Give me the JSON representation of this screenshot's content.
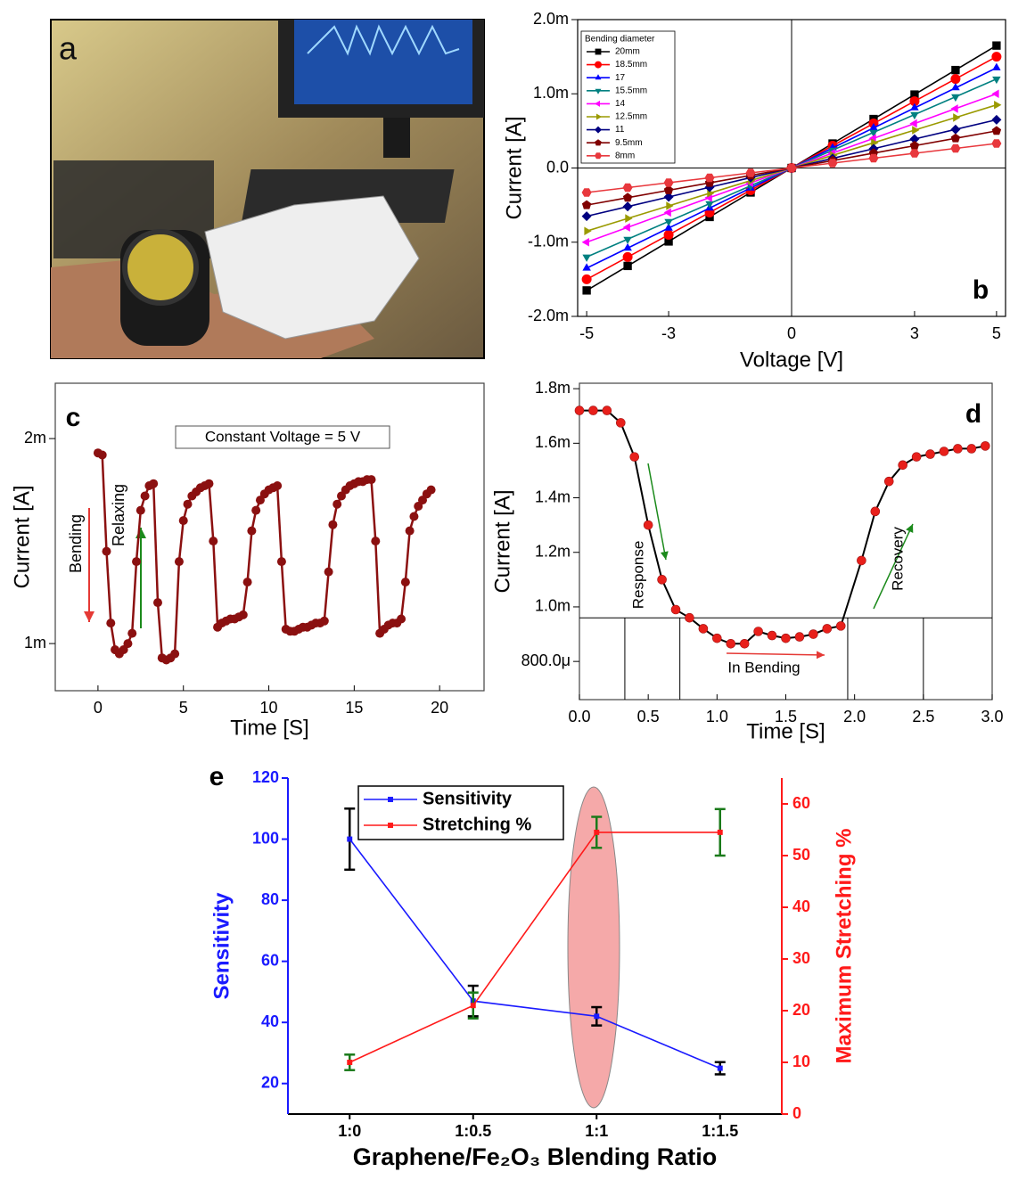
{
  "photo": {
    "label": "a"
  },
  "chart_data": [
    {
      "type": "line",
      "panel_label": "b",
      "x_label": "Voltage [V]",
      "y_label": "Current [A]",
      "xlim": [
        -5.22,
        5.22
      ],
      "xticks": [
        -5,
        -3,
        0,
        3,
        5
      ],
      "ylim": [
        -0.002,
        0.002
      ],
      "yticks": [
        {
          "value": -0.002,
          "label": "-2.0m"
        },
        {
          "value": -0.001,
          "label": "-1.0m"
        },
        {
          "value": 0,
          "label": "0.0"
        },
        {
          "value": 0.001,
          "label": "1.0m"
        },
        {
          "value": 0.002,
          "label": "2.0m"
        }
      ],
      "zero_lines": true,
      "legend_title": "Bending diameter",
      "legend": "upper left",
      "x": [
        -5,
        -4,
        -3,
        -2,
        -1,
        0,
        1,
        2,
        3,
        4,
        5
      ],
      "series": [
        {
          "name": "20mm",
          "color": "#000000",
          "marker": "square",
          "values": [
            -0.00165,
            -0.00132,
            -0.00099,
            -0.00066,
            -0.00033,
            0,
            0.00033,
            0.00066,
            0.00099,
            0.00132,
            0.00165
          ]
        },
        {
          "name": "18.5mm",
          "color": "#ff0000",
          "marker": "circle",
          "values": [
            -0.0015,
            -0.0012,
            -0.0009,
            -0.0006,
            -0.0003,
            0,
            0.0003,
            0.0006,
            0.0009,
            0.0012,
            0.0015
          ]
        },
        {
          "name": "17",
          "color": "#0000ff",
          "marker": "tri-up",
          "values": [
            -0.00135,
            -0.00108,
            -0.00081,
            -0.00054,
            -0.00027,
            0,
            0.00027,
            0.00054,
            0.00081,
            0.00108,
            0.00135
          ]
        },
        {
          "name": "15.5mm",
          "color": "#008080",
          "marker": "tri-down",
          "values": [
            -0.0012,
            -0.00096,
            -0.00072,
            -0.00048,
            -0.00024,
            0,
            0.00024,
            0.00048,
            0.00072,
            0.00096,
            0.0012
          ]
        },
        {
          "name": "14",
          "color": "#ff00ff",
          "marker": "tri-left",
          "values": [
            -0.001,
            -0.0008,
            -0.0006,
            -0.0004,
            -0.0002,
            0,
            0.0002,
            0.0004,
            0.0006,
            0.0008,
            0.001
          ]
        },
        {
          "name": "12.5mm",
          "color": "#9a9a00",
          "marker": "tri-right",
          "values": [
            -0.00085,
            -0.00068,
            -0.00051,
            -0.00034,
            -0.00017,
            0,
            0.00017,
            0.00034,
            0.00051,
            0.00068,
            0.00085
          ]
        },
        {
          "name": "11",
          "color": "#000080",
          "marker": "diamond",
          "values": [
            -0.00065,
            -0.00052,
            -0.00039,
            -0.00026,
            -0.00013,
            0,
            0.00013,
            0.00026,
            0.00039,
            0.00052,
            0.00065
          ]
        },
        {
          "name": "9.5mm",
          "color": "#800000",
          "marker": "pentagon",
          "values": [
            -0.0005,
            -0.0004,
            -0.0003,
            -0.0002,
            -0.0001,
            0,
            0.0001,
            0.0002,
            0.0003,
            0.0004,
            0.0005
          ]
        },
        {
          "name": "8mm",
          "color": "#e8383d",
          "marker": "hexagon",
          "values": [
            -0.00033,
            -0.000264,
            -0.000198,
            -0.000132,
            -6.6e-05,
            0,
            6.6e-05,
            0.000132,
            0.000198,
            0.000264,
            0.00033
          ]
        }
      ]
    },
    {
      "type": "line",
      "panel_label": "c",
      "x_label": "Time [S]",
      "y_label": "Current [A]",
      "xlim": [
        -2.5,
        22.6
      ],
      "xticks": [
        0,
        5,
        10,
        15,
        20
      ],
      "ylim": [
        0.00077,
        0.00227
      ],
      "yticks": [
        {
          "value": 0.001,
          "label": "1m"
        },
        {
          "value": 0.002,
          "label": "2m"
        }
      ],
      "annotations": [
        {
          "text": "Constant Voltage = 5 V"
        },
        {
          "text": "Bending"
        },
        {
          "text": "Relaxing"
        }
      ],
      "x": [
        0,
        0.25,
        0.5,
        0.75,
        1,
        1.25,
        1.5,
        1.75,
        2,
        2.25,
        2.5,
        2.75,
        3,
        3.25,
        3.5,
        3.75,
        4,
        4.25,
        4.5,
        4.75,
        5,
        5.25,
        5.5,
        5.75,
        6,
        6.25,
        6.5,
        6.75,
        7,
        7.25,
        7.5,
        7.75,
        8,
        8.25,
        8.5,
        8.75,
        9,
        9.25,
        9.5,
        9.75,
        10,
        10.25,
        10.5,
        10.75,
        11,
        11.25,
        11.5,
        11.75,
        12,
        12.25,
        12.5,
        12.75,
        13,
        13.25,
        13.5,
        13.75,
        14,
        14.25,
        14.5,
        14.75,
        15,
        15.25,
        15.5,
        15.75,
        16,
        16.25,
        16.5,
        16.75,
        17,
        17.25,
        17.5,
        17.75,
        18,
        18.25,
        18.5,
        18.75,
        19,
        19.25,
        19.5
      ],
      "series": [
        {
          "color": "#8b1010",
          "marker": "circle",
          "values": [
            0.00193,
            0.00192,
            0.00145,
            0.0011,
            0.00097,
            0.00095,
            0.00097,
            0.001,
            0.00105,
            0.0014,
            0.00165,
            0.00172,
            0.00177,
            0.00178,
            0.0012,
            0.00093,
            0.00092,
            0.00093,
            0.00095,
            0.0014,
            0.0016,
            0.00168,
            0.00172,
            0.00174,
            0.00176,
            0.00177,
            0.00178,
            0.0015,
            0.00108,
            0.0011,
            0.00111,
            0.00112,
            0.00112,
            0.00113,
            0.00114,
            0.0013,
            0.00155,
            0.00165,
            0.0017,
            0.00173,
            0.00175,
            0.00176,
            0.00177,
            0.0014,
            0.00107,
            0.00106,
            0.00106,
            0.00107,
            0.00108,
            0.00108,
            0.00109,
            0.0011,
            0.0011,
            0.00111,
            0.00135,
            0.00158,
            0.00168,
            0.00172,
            0.00175,
            0.00177,
            0.00178,
            0.00179,
            0.00179,
            0.0018,
            0.0018,
            0.0015,
            0.00105,
            0.00107,
            0.00109,
            0.0011,
            0.0011,
            0.00112,
            0.0013,
            0.00155,
            0.00162,
            0.00167,
            0.0017,
            0.00173,
            0.00175
          ]
        }
      ]
    },
    {
      "type": "line",
      "panel_label": "d",
      "x_label": "Time [S]",
      "y_label": "Current [A]",
      "xlim": [
        0,
        3
      ],
      "xticks": [
        {
          "value": 0,
          "label": "0.0"
        },
        0.5,
        {
          "value": 1,
          "label": "1.0"
        },
        1.5,
        {
          "value": 2,
          "label": "2.0"
        },
        2.5,
        {
          "value": 3,
          "label": "3.0"
        }
      ],
      "ylim": [
        0.00066,
        0.00182
      ],
      "yticks": [
        {
          "value": 0.0008,
          "label": "800.0μ"
        },
        {
          "value": 0.001,
          "label": "1.0m"
        },
        {
          "value": 0.0012,
          "label": "1.2m"
        },
        {
          "value": 0.0014,
          "label": "1.4m"
        },
        {
          "value": 0.0016,
          "label": "1.6m"
        },
        {
          "value": 0.0018,
          "label": "1.8m"
        }
      ],
      "hlines": [
        0.00096
      ],
      "vlines": [
        0.33,
        0.73,
        1.95,
        2.5
      ],
      "annotations": [
        {
          "text": "Response"
        },
        {
          "text": "In Bending"
        },
        {
          "text": "Recovery"
        }
      ],
      "x": [
        0,
        0.1,
        0.2,
        0.3,
        0.4,
        0.5,
        0.6,
        0.7,
        0.8,
        0.9,
        1,
        1.1,
        1.2,
        1.3,
        1.4,
        1.5,
        1.6,
        1.7,
        1.8,
        1.9,
        2.05,
        2.15,
        2.25,
        2.35,
        2.45,
        2.55,
        2.65,
        2.75,
        2.85,
        2.95
      ],
      "series": [
        {
          "color": "#e8201b",
          "line_color": "#000000",
          "marker": "circle",
          "values": [
            0.00172,
            0.00172,
            0.00172,
            0.001675,
            0.00155,
            0.0013,
            0.0011,
            0.00099,
            0.00096,
            0.00092,
            0.000885,
            0.000865,
            0.000865,
            0.00091,
            0.000895,
            0.000885,
            0.00089,
            0.0009,
            0.00092,
            0.00093,
            0.00117,
            0.00135,
            0.00146,
            0.00152,
            0.00155,
            0.00156,
            0.00157,
            0.00158,
            0.00158,
            0.00159
          ]
        }
      ]
    },
    {
      "type": "line",
      "panel_label": "e",
      "x_label": "Graphene/Fe₂O₃ Blending Ratio",
      "y_label": "Sensitivity",
      "y2_label": "Maximum Stretching %",
      "categories": [
        "1:0",
        "1:0.5",
        "1:1",
        "1:1.5"
      ],
      "ylim": [
        10,
        120
      ],
      "yticks": [
        20,
        40,
        60,
        80,
        100,
        120
      ],
      "y_color": "#1a1aff",
      "y2lim": [
        0,
        65
      ],
      "y2ticks": [
        0,
        10,
        20,
        30,
        40,
        50,
        60
      ],
      "y2_color": "#ff1a1a",
      "legend": "upper left",
      "series": [
        {
          "name": "Sensitivity",
          "color": "#1a1aff",
          "marker": "square",
          "error_color": "#000000",
          "values": [
            100,
            47,
            42,
            25
          ],
          "errors": [
            10,
            5,
            3,
            2
          ]
        },
        {
          "name": "Stretching %",
          "color": "#ff1a1a",
          "marker": "square",
          "axis": "y2",
          "error_color": "#1a7a1a",
          "values": [
            10,
            21,
            54.5,
            54.5
          ],
          "errors": [
            1.5,
            2.5,
            3,
            4.5
          ]
        }
      ]
    }
  ]
}
